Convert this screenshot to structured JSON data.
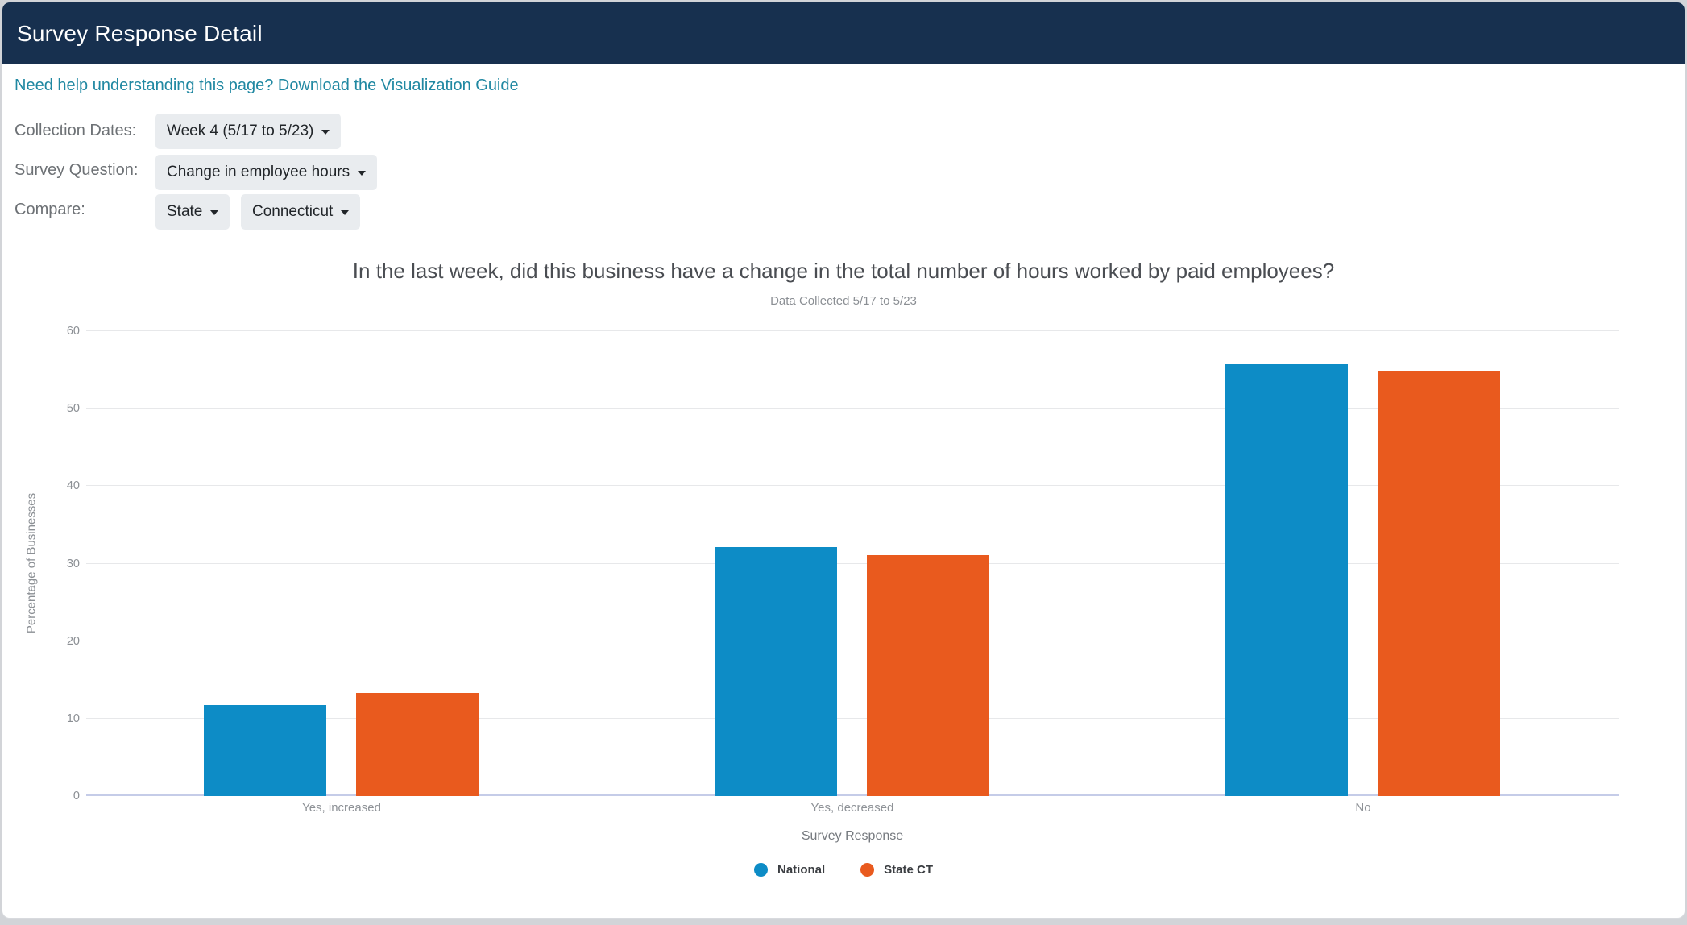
{
  "page": {
    "title": "Survey Response Detail"
  },
  "help_link": {
    "text": "Need help understanding this page? Download the Visualization Guide"
  },
  "controls": {
    "collection_dates": {
      "label": "Collection Dates:",
      "value": "Week 4 (5/17 to 5/23)"
    },
    "survey_question": {
      "label": "Survey Question:",
      "value": "Change in employee hours"
    },
    "compare": {
      "label": "Compare:",
      "type_value": "State",
      "region_value": "Connecticut"
    }
  },
  "chart_data": {
    "type": "bar",
    "title": "In the last week, did this business have a change in the total number of hours worked by paid employees?",
    "subtitle": "Data Collected 5/17 to 5/23",
    "xlabel": "Survey Response",
    "ylabel": "Percentage of Businesses",
    "categories": [
      "Yes, increased",
      "Yes, decreased",
      "No"
    ],
    "series": [
      {
        "name": "National",
        "color": "#0d8cc6",
        "values": [
          11.8,
          32.1,
          55.7
        ]
      },
      {
        "name": "State CT",
        "color": "#e95a1e",
        "values": [
          13.3,
          31.1,
          54.9
        ]
      }
    ],
    "ylim": [
      0,
      60
    ],
    "ytick_step": 10,
    "grid": true,
    "legend_position": "bottom"
  },
  "colors": {
    "header_bg": "#17304f",
    "link": "#2088a2",
    "label_gray": "#6d7175",
    "btn_bg": "#e9ecef",
    "btn_text": "#212529",
    "grid": "#e7e8ea",
    "baseline": "#c5cce8",
    "axis_text": "#8b8f94"
  }
}
